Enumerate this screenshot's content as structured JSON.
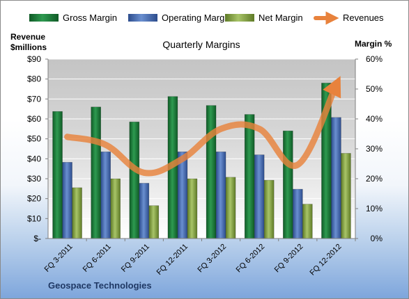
{
  "chart_data": {
    "type": "bar",
    "title": "Quarterly Margins",
    "categories": [
      "FQ 3-2011",
      "FQ 6-2011",
      "FQ 9-2011",
      "FQ 12-2011",
      "FQ 3-2012",
      "FQ 6-2012",
      "FQ 9-2012",
      "FQ 12-2012"
    ],
    "series": [
      {
        "name": "Gross Margin",
        "type": "bar",
        "axis": "right",
        "values": [
          42.5,
          44.0,
          39.0,
          47.5,
          44.5,
          41.5,
          36.0,
          52.0
        ],
        "color": "#1e7a3c"
      },
      {
        "name": "Operating Margin",
        "type": "bar",
        "axis": "right",
        "values": [
          25.5,
          29.0,
          18.5,
          29.0,
          29.0,
          28.0,
          16.5,
          40.5
        ],
        "color": "#4a6fb5"
      },
      {
        "name": "Net Margin",
        "type": "bar",
        "axis": "right",
        "values": [
          17.0,
          20.0,
          11.0,
          20.0,
          20.5,
          19.5,
          11.5,
          28.5
        ],
        "color": "#8aa64a"
      },
      {
        "name": "Revenues",
        "type": "line",
        "axis": "left",
        "values": [
          51,
          47,
          33,
          40,
          55,
          55,
          37,
          77
        ],
        "color": "#e8823c"
      }
    ],
    "y_left": {
      "label_line1": "Revenue",
      "label_line2": "$millions",
      "min": 0,
      "max": 90,
      "step": 10,
      "ticks": [
        "$-",
        "$10",
        "$20",
        "$30",
        "$40",
        "$50",
        "$60",
        "$70",
        "$80",
        "$90"
      ]
    },
    "y_right": {
      "label": "Margin %",
      "min": 0,
      "max": 60,
      "step": 10,
      "ticks": [
        "0%",
        "10%",
        "20%",
        "30%",
        "40%",
        "50%",
        "60%"
      ]
    },
    "legend_position": "top",
    "grid": true
  },
  "footer": "Geospace Technologies",
  "colors": {
    "plot_bg_top": "#c8c8c8",
    "plot_bg_bottom": "#ffffff",
    "gridline": "#ffffff"
  }
}
